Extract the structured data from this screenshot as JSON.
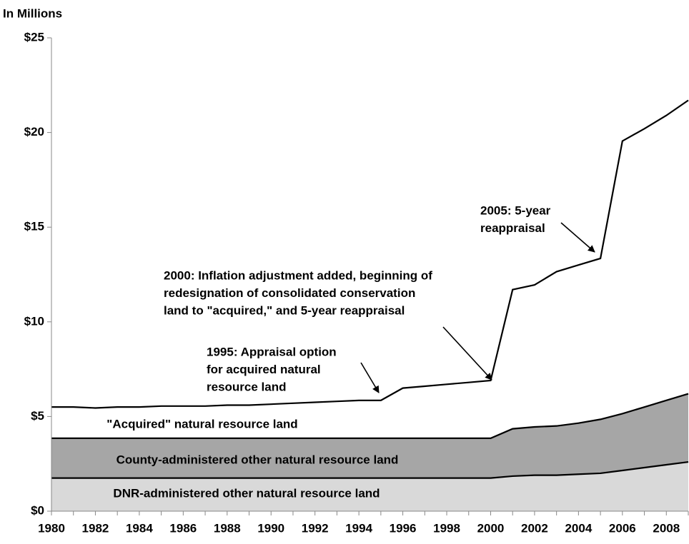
{
  "chart_data": {
    "type": "stacked-area",
    "y_label": "In Millions",
    "x": [
      1980,
      1981,
      1982,
      1983,
      1984,
      1985,
      1986,
      1987,
      1988,
      1989,
      1990,
      1991,
      1992,
      1993,
      1994,
      1995,
      1996,
      1997,
      1998,
      1999,
      2000,
      2001,
      2002,
      2003,
      2004,
      2005,
      2006,
      2007,
      2008,
      2009
    ],
    "xlim": [
      1980,
      2009
    ],
    "xticks": [
      1980,
      1982,
      1984,
      1986,
      1988,
      1990,
      1992,
      1994,
      1996,
      1998,
      2000,
      2002,
      2004,
      2006,
      2008
    ],
    "ylim": [
      0,
      25
    ],
    "yticks": [
      {
        "value": 0,
        "label": "$0"
      },
      {
        "value": 5,
        "label": "$5"
      },
      {
        "value": 10,
        "label": "$10"
      },
      {
        "value": 15,
        "label": "$15"
      },
      {
        "value": 20,
        "label": "$20"
      },
      {
        "value": 25,
        "label": "$25"
      }
    ],
    "series": [
      {
        "name": "DNR-administered other natural resource land",
        "color": "#d9d9d9",
        "values": [
          1.75,
          1.75,
          1.75,
          1.75,
          1.75,
          1.75,
          1.75,
          1.75,
          1.75,
          1.75,
          1.75,
          1.75,
          1.75,
          1.75,
          1.75,
          1.75,
          1.75,
          1.75,
          1.75,
          1.75,
          1.75,
          1.85,
          1.9,
          1.9,
          1.95,
          2.0,
          2.15,
          2.3,
          2.45,
          2.6
        ]
      },
      {
        "name": "County-administered other natural resource land",
        "color": "#a6a6a6",
        "values": [
          2.1,
          2.1,
          2.1,
          2.1,
          2.1,
          2.1,
          2.1,
          2.1,
          2.1,
          2.1,
          2.1,
          2.1,
          2.1,
          2.1,
          2.1,
          2.1,
          2.1,
          2.1,
          2.1,
          2.1,
          2.1,
          2.5,
          2.55,
          2.6,
          2.7,
          2.85,
          3.0,
          3.2,
          3.4,
          3.6
        ]
      },
      {
        "name": "\"Acquired\" natural resource land",
        "color": "#ffffff",
        "values": [
          1.65,
          1.65,
          1.6,
          1.65,
          1.65,
          1.7,
          1.7,
          1.7,
          1.75,
          1.75,
          1.8,
          1.85,
          1.9,
          1.95,
          2.0,
          2.0,
          2.65,
          2.75,
          2.85,
          2.95,
          3.05,
          7.35,
          7.5,
          8.15,
          8.35,
          8.5,
          14.4,
          14.7,
          15.05,
          15.5
        ]
      }
    ],
    "annotations": [
      {
        "lines": [
          "1995:  Appraisal option",
          "for acquired natural",
          "resource land"
        ]
      },
      {
        "lines": [
          "2000:  Inflation adjustment added, beginning of",
          "redesignation of consolidated conservation",
          "land to \"acquired,\" and 5-year reappraisal"
        ]
      },
      {
        "lines": [
          "2005:  5-year",
          "reappraisal"
        ]
      }
    ]
  }
}
